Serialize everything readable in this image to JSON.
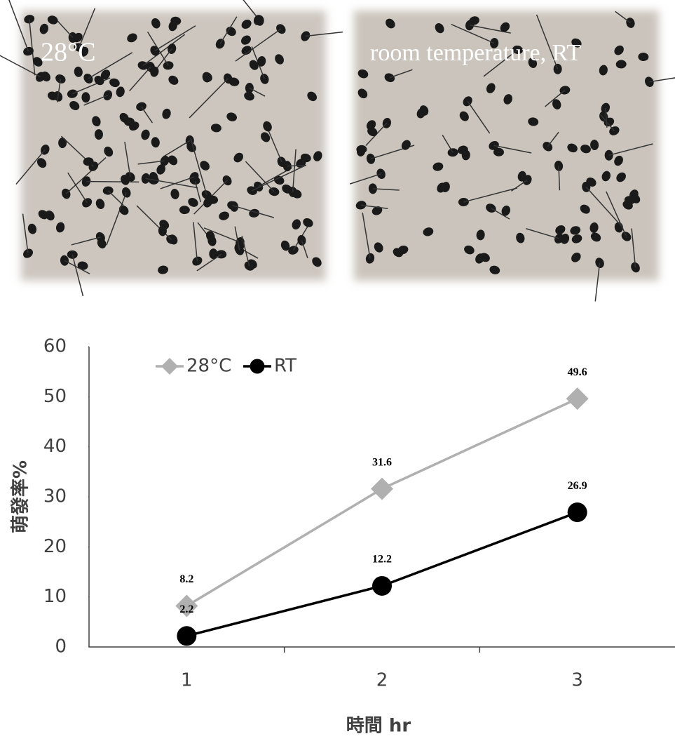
{
  "photo_labels": [
    "28°C",
    "room temperature, RT"
  ],
  "chart_data": {
    "type": "line",
    "y_label": "萌發率%",
    "x_label": "時間 hr",
    "categories": [
      "1",
      "2",
      "3"
    ],
    "series": [
      {
        "name": "28°C",
        "color": "#b0b0b0",
        "marker": "diamond",
        "values": [
          8.2,
          31.6,
          49.6
        ]
      },
      {
        "name": "RT",
        "color": "#000000",
        "marker": "circle",
        "values": [
          2.2,
          12.2,
          26.9
        ]
      }
    ],
    "ylim": [
      0,
      60
    ],
    "yticks": [
      0,
      10,
      20,
      30,
      40,
      50,
      60
    ],
    "grid": false,
    "legend": "top-left"
  }
}
